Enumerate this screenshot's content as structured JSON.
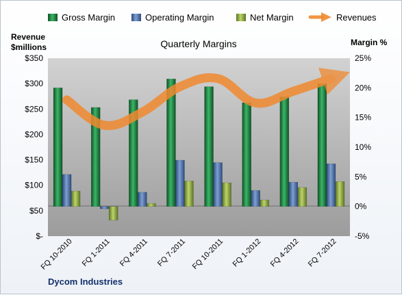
{
  "chart_data": {
    "type": "bar",
    "title": "Quarterly Margins",
    "footer": "Dycom Industries",
    "left_axis": {
      "label_line1": "Revenue",
      "label_line2": "$millions",
      "range": [
        0,
        350
      ],
      "ticks": [
        0,
        50,
        100,
        150,
        200,
        250,
        300,
        350
      ],
      "tick_labels": [
        "$-",
        "$50",
        "$100",
        "$150",
        "$200",
        "$250",
        "$300",
        "$350"
      ]
    },
    "right_axis": {
      "label": "Margin %",
      "range": [
        -5,
        25
      ],
      "ticks": [
        -5,
        0,
        5,
        10,
        15,
        20,
        25
      ],
      "tick_labels": [
        "-5%",
        "0%",
        "5%",
        "10%",
        "15%",
        "20%",
        "25%"
      ]
    },
    "categories": [
      "FQ 10-2010",
      "FQ 1-2011",
      "FQ 4-2011",
      "FQ 7-2011",
      "FQ 10-2011",
      "FQ 1-2012",
      "FQ 4-2012",
      "FQ 7-2012"
    ],
    "series": [
      {
        "name": "Gross Margin",
        "axis": "right",
        "color": "#1e7a3c",
        "values": [
          20.0,
          16.7,
          18.0,
          21.5,
          20.2,
          17.5,
          18.5,
          20.7
        ]
      },
      {
        "name": "Operating Margin",
        "axis": "right",
        "color": "#4a6fa8",
        "values": [
          5.4,
          -0.4,
          2.4,
          7.8,
          7.4,
          2.7,
          4.1,
          7.2
        ]
      },
      {
        "name": "Net Margin",
        "axis": "right",
        "color": "#8aa63a",
        "values": [
          2.6,
          -2.3,
          0.5,
          4.3,
          4.0,
          1.1,
          3.2,
          4.2
        ]
      },
      {
        "name": "Revenues",
        "axis": "left",
        "type": "line",
        "color": "#f08a30",
        "values": [
          268,
          218,
          244,
          294,
          310,
          262,
          285,
          310
        ]
      }
    ],
    "legend_placement": "top",
    "grid": false
  }
}
